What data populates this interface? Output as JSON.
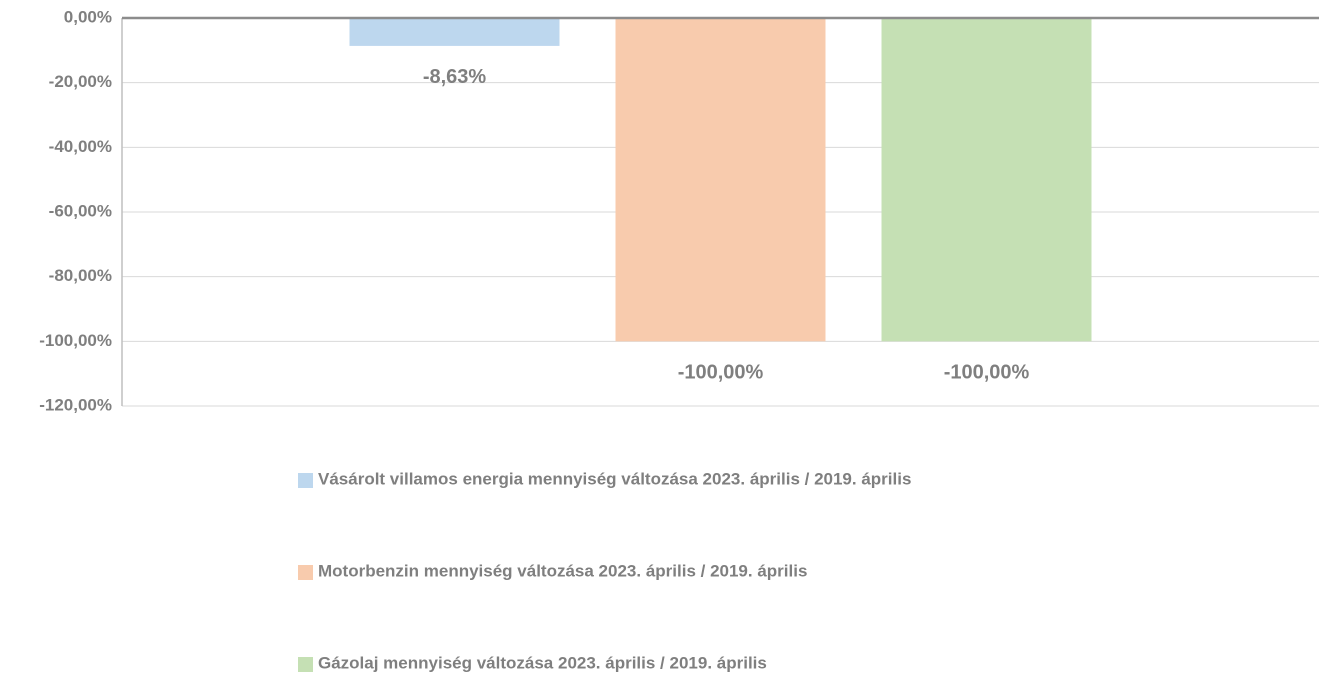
{
  "chart_data": {
    "type": "bar",
    "categories": [
      null
    ],
    "series": [
      {
        "name": "Vásárolt villamos energia mennyiség változása 2023. április / 2019. április",
        "color": "#bdd7ee",
        "values": [
          -8.63
        ],
        "value_labels": [
          "-8,63%"
        ]
      },
      {
        "name": "Motorbenzin mennyiség változása 2023. április / 2019. április",
        "color": "#f8cbad",
        "values": [
          -100
        ],
        "value_labels": [
          "-100,00%"
        ]
      },
      {
        "name": "Gázolaj mennyiség változása 2023. április / 2019. április",
        "color": "#c5e0b4",
        "values": [
          -100
        ],
        "value_labels": [
          "-100,00%"
        ]
      }
    ],
    "ylim": [
      -120,
      0
    ],
    "yticks": [
      {
        "value": 0,
        "label": "0,00%"
      },
      {
        "value": -20,
        "label": "-20,00%"
      },
      {
        "value": -40,
        "label": "-40,00%"
      },
      {
        "value": -60,
        "label": "-60,00%"
      },
      {
        "value": -80,
        "label": "-80,00%"
      },
      {
        "value": -100,
        "label": "-100,00%"
      },
      {
        "value": -120,
        "label": "-120,00%"
      }
    ],
    "grid": true,
    "legend_position": "bottom"
  }
}
